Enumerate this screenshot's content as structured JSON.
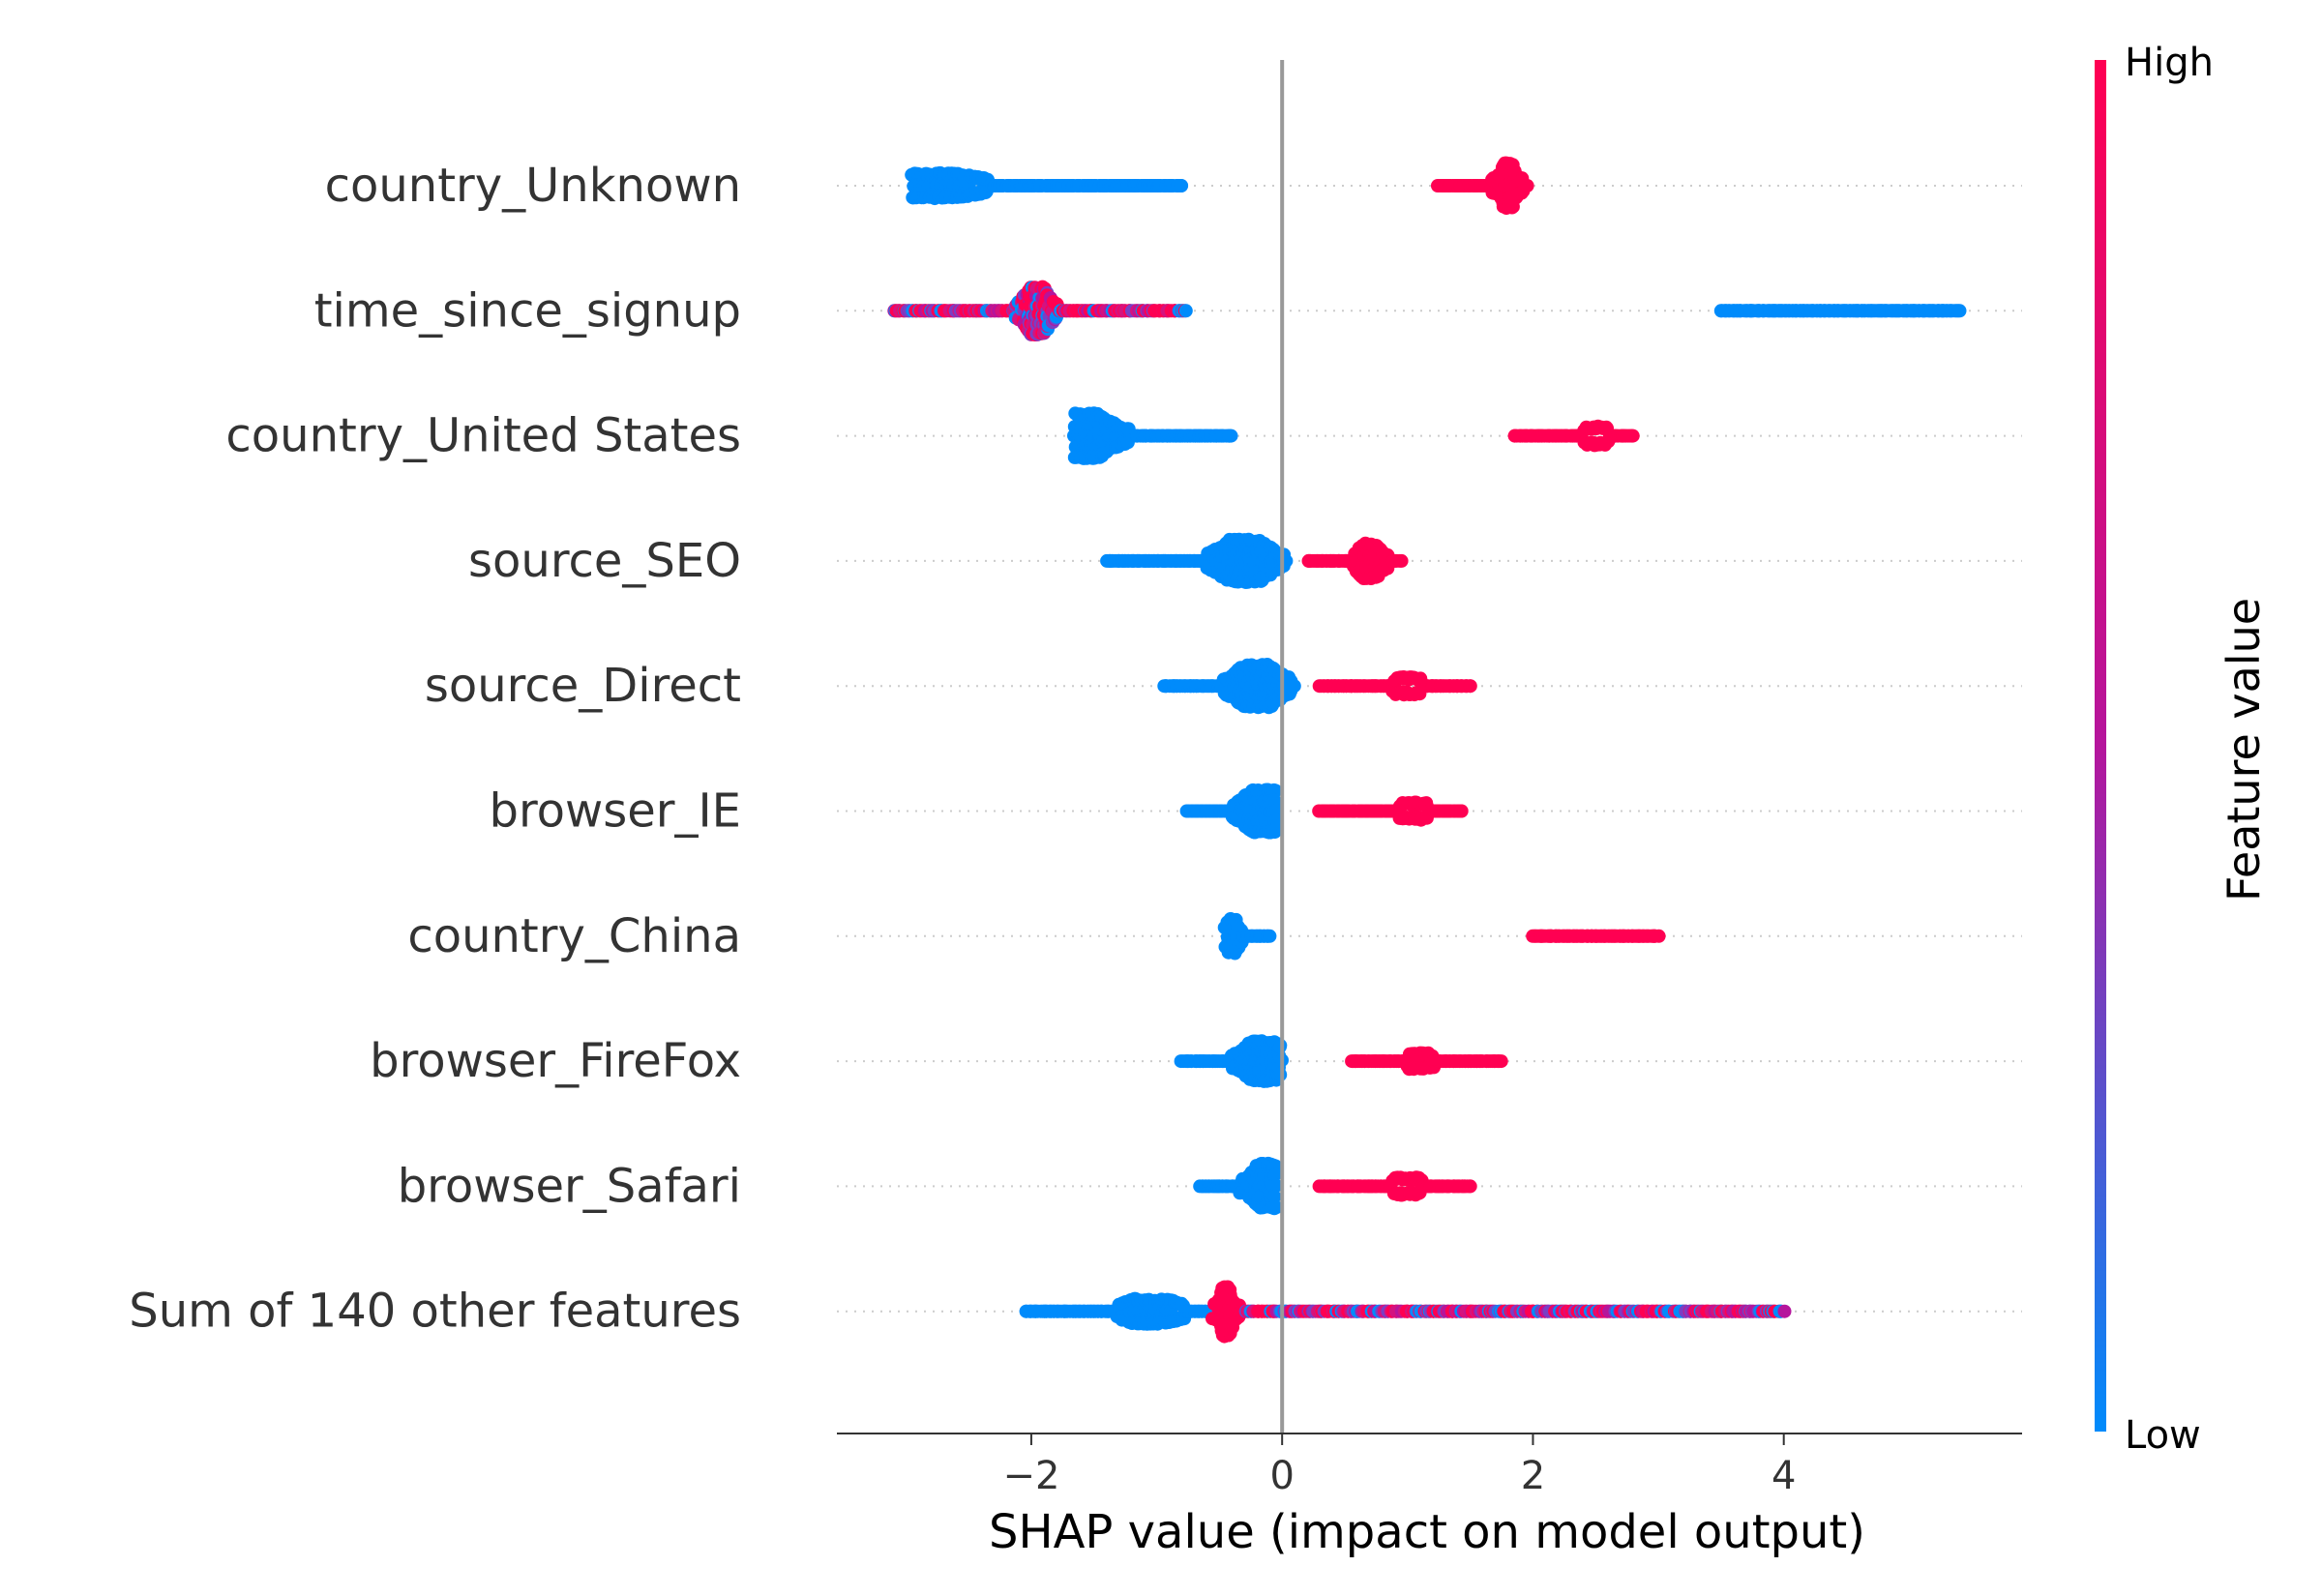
{
  "chart_data": {
    "type": "scatter",
    "subtype": "shap-beeswarm",
    "xlabel": "SHAP value (impact on model output)",
    "xlim": [
      -3.55,
      5.9
    ],
    "xticks": [
      {
        "value": -2,
        "label": "−2"
      },
      {
        "value": 0,
        "label": "0"
      },
      {
        "value": 2,
        "label": "2"
      },
      {
        "value": 4,
        "label": "4"
      }
    ],
    "zero_line": 0,
    "grid": "dotted horizontal row guides",
    "colorbar": {
      "title": "Feature value",
      "high_label": "High",
      "low_label": "Low",
      "high_color": "#ff0052",
      "mid_color": "#b5159c",
      "low_color": "#008bfb"
    },
    "features": [
      {
        "name": "country_Unknown",
        "groups": [
          {
            "color": "low",
            "min": -2.95,
            "max": -0.8,
            "peak": -2.8,
            "spread": 0.9,
            "decay": 1.2,
            "maxh": 0.18
          },
          {
            "color": "high",
            "min": 1.25,
            "max": 1.95,
            "peak": 1.8,
            "spread": 0.12,
            "decay": 0.5,
            "maxh": 0.34
          }
        ]
      },
      {
        "name": "time_since_signup",
        "groups": [
          {
            "color": "mixed",
            "min": -3.1,
            "max": -0.75,
            "peak": -1.95,
            "spread": 0.22,
            "decay": 0.3,
            "maxh": 0.36
          },
          {
            "color": "low",
            "min": 3.5,
            "max": 5.4,
            "peak": 4.1,
            "spread": 0.8,
            "decay": 1.5,
            "maxh": 0.05
          }
        ]
      },
      {
        "name": "country_United States",
        "groups": [
          {
            "color": "low",
            "min": -1.65,
            "max": -0.4,
            "peak": -1.6,
            "spread": 0.5,
            "decay": 0.8,
            "maxh": 0.34
          },
          {
            "color": "high",
            "min": 1.85,
            "max": 2.8,
            "peak": 2.5,
            "spread": 0.25,
            "decay": 0.6,
            "maxh": 0.13
          }
        ]
      },
      {
        "name": "source_SEO",
        "groups": [
          {
            "color": "low",
            "min": -1.4,
            "max": 0.05,
            "peak": -0.3,
            "spread": 0.45,
            "decay": 0.5,
            "maxh": 0.32
          },
          {
            "color": "high",
            "min": 0.2,
            "max": 0.95,
            "peak": 0.7,
            "spread": 0.2,
            "decay": 0.5,
            "maxh": 0.26
          }
        ]
      },
      {
        "name": "source_Direct",
        "groups": [
          {
            "color": "low",
            "min": -0.95,
            "max": 0.1,
            "peak": -0.2,
            "spread": 0.4,
            "decay": 0.5,
            "maxh": 0.32
          },
          {
            "color": "high",
            "min": 0.3,
            "max": 1.5,
            "peak": 1.0,
            "spread": 0.3,
            "decay": 0.6,
            "maxh": 0.12
          }
        ]
      },
      {
        "name": "browser_IE",
        "groups": [
          {
            "color": "low",
            "min": -0.75,
            "max": -0.05,
            "peak": -0.15,
            "spread": 0.35,
            "decay": 0.5,
            "maxh": 0.32
          },
          {
            "color": "high",
            "min": 0.3,
            "max": 1.45,
            "peak": 1.05,
            "spread": 0.3,
            "decay": 0.6,
            "maxh": 0.12
          }
        ]
      },
      {
        "name": "country_China",
        "groups": [
          {
            "color": "low",
            "min": -0.45,
            "max": -0.1,
            "peak": -0.4,
            "spread": 0.1,
            "decay": 0.3,
            "maxh": 0.26
          },
          {
            "color": "high",
            "min": 2.0,
            "max": 3.0,
            "peak": 2.75,
            "spread": 0.25,
            "decay": 0.6,
            "maxh": 0.05
          }
        ]
      },
      {
        "name": "browser_FireFox",
        "groups": [
          {
            "color": "low",
            "min": -0.8,
            "max": 0.0,
            "peak": -0.15,
            "spread": 0.35,
            "decay": 0.5,
            "maxh": 0.3
          },
          {
            "color": "high",
            "min": 0.55,
            "max": 1.75,
            "peak": 1.1,
            "spread": 0.3,
            "decay": 0.6,
            "maxh": 0.11
          }
        ]
      },
      {
        "name": "browser_Safari",
        "groups": [
          {
            "color": "low",
            "min": -0.65,
            "max": -0.05,
            "peak": -0.1,
            "spread": 0.3,
            "decay": 0.5,
            "maxh": 0.34
          },
          {
            "color": "high",
            "min": 0.3,
            "max": 1.5,
            "peak": 1.0,
            "spread": 0.3,
            "decay": 0.6,
            "maxh": 0.12
          }
        ]
      },
      {
        "name": "Sum of 140 other features",
        "groups": [
          {
            "color": "low",
            "min": -2.05,
            "max": -0.6,
            "peak": -1.05,
            "spread": 0.5,
            "decay": 0.9,
            "maxh": 0.18
          },
          {
            "color": "high",
            "min": -0.55,
            "max": -0.3,
            "peak": -0.45,
            "spread": 0.1,
            "decay": 0.3,
            "maxh": 0.38
          },
          {
            "color": "mixed",
            "min": -0.3,
            "max": 4.0,
            "peak": 0.2,
            "spread": 2.0,
            "decay": 2.5,
            "maxh": 0.06
          }
        ]
      }
    ]
  }
}
